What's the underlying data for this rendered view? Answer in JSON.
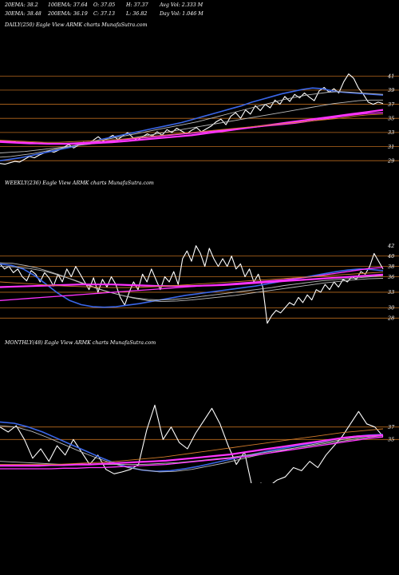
{
  "header": {
    "ema20": "20EMA: 38.2",
    "ema100": "100EMA: 37.64",
    "open": "O: 37.05",
    "high": "H: 37.37",
    "avg_vol": "Avg Vol: 2.333 M",
    "ema30": "30EMA: 38.48",
    "ema200": "200EMA: 36.19",
    "close": "C: 37.13",
    "low": "L: 36.82",
    "day_vol": "Day Vol: 1.046 M"
  },
  "colors": {
    "price": "#ffffff",
    "ema_blue": "#3a66e8",
    "ema_pink": "#ff33ff",
    "ema_gray": "#bbbbbb",
    "level_line": "#b86a1e",
    "ema_orange": "#d07a2a"
  },
  "chart_data": [
    {
      "type": "line",
      "title": "DAILY(250) Eagle View ARMK charts MunafaSutra.com",
      "ylim": [
        28,
        42.5
      ],
      "yticks": [
        "41",
        "39",
        "37",
        "35",
        "33",
        "31",
        "29"
      ],
      "levels": [
        41,
        39,
        37,
        35,
        33,
        31,
        29
      ],
      "grid": false,
      "series": [
        {
          "role": "price",
          "values": [
            28.6,
            28.5,
            28.7,
            28.9,
            28.8,
            29.2,
            29.6,
            29.4,
            29.8,
            30.1,
            30.4,
            30.2,
            30.5,
            30.9,
            31.3,
            30.8,
            31.2,
            31.6,
            31.4,
            31.9,
            32.4,
            31.8,
            32.2,
            32.6,
            32.0,
            32.5,
            33.0,
            32.3,
            31.9,
            32.4,
            32.8,
            32.5,
            33.1,
            32.6,
            33.4,
            33.0,
            33.6,
            33.2,
            32.8,
            33.3,
            33.7,
            33.1,
            33.5,
            33.9,
            34.5,
            34.9,
            34.1,
            35.3,
            35.8,
            35.0,
            36.2,
            35.6,
            36.8,
            36.1,
            37.0,
            36.5,
            37.6,
            37.0,
            38.1,
            37.4,
            38.4,
            37.9,
            38.6,
            38.0,
            37.5,
            38.9,
            39.4,
            38.7,
            39.2,
            38.6,
            40.2,
            41.3,
            40.7,
            39.3,
            38.4,
            37.3,
            37.0,
            37.3,
            37.1
          ]
        },
        {
          "role": "ema",
          "values": [
            29.0,
            29.2,
            29.4,
            29.7,
            30.0,
            30.3,
            30.6,
            30.9,
            31.3,
            31.6,
            32.0,
            32.3,
            32.6,
            32.9,
            33.2,
            33.5,
            33.8,
            34.1,
            34.4,
            34.8,
            35.2,
            35.6,
            36.0,
            36.4,
            36.8,
            37.3,
            37.7,
            38.1,
            38.5,
            38.8,
            39.1,
            39.3,
            39.2,
            38.9,
            38.7,
            38.6,
            38.5,
            38.4,
            38.3
          ]
        },
        {
          "role": "ema",
          "values": [
            29.5,
            29.6,
            29.8,
            30.0,
            30.3,
            30.6,
            30.9,
            31.2,
            31.5,
            31.8,
            32.1,
            32.4,
            32.7,
            33.0,
            33.3,
            33.6,
            33.9,
            34.2,
            34.5,
            34.9,
            35.3,
            35.7,
            36.1,
            36.5,
            36.9,
            37.3,
            37.7,
            38.0,
            38.3,
            38.5,
            38.7,
            38.8,
            38.7,
            38.6,
            38.5,
            38.4
          ]
        },
        {
          "role": "ema",
          "values": [
            30.1,
            30.2,
            30.3,
            30.5,
            30.7,
            30.9,
            31.1,
            31.3,
            31.5,
            31.7,
            32.0,
            32.3,
            32.6,
            32.9,
            33.2,
            33.5,
            33.8,
            34.1,
            34.4,
            34.7,
            35.0,
            35.3,
            35.6,
            35.9,
            36.2,
            36.5,
            36.8,
            37.1,
            37.3,
            37.5,
            37.6,
            37.6
          ]
        },
        {
          "role": "ema",
          "values": [
            31.8,
            31.6,
            31.5,
            31.4,
            31.4,
            31.4,
            31.5,
            31.6,
            31.8,
            32.0,
            32.2,
            32.4,
            32.6,
            32.9,
            33.2,
            33.5,
            33.8,
            34.1,
            34.4,
            34.7,
            35.0,
            35.3,
            35.6,
            35.9,
            36.2
          ]
        },
        {
          "role": "ema",
          "values": [
            31.6,
            31.5,
            31.4,
            31.4,
            31.4,
            31.5,
            31.6,
            31.7,
            31.9,
            32.1,
            32.3,
            32.5,
            32.7,
            32.9,
            33.1,
            33.3,
            33.5,
            33.7,
            33.9,
            34.1,
            34.3,
            34.6,
            34.9,
            35.2,
            35.5,
            35.7,
            35.8
          ]
        },
        {
          "role": "ema",
          "values": [
            31.9,
            31.8,
            31.7,
            31.6,
            31.6,
            31.7,
            31.8,
            31.9,
            32.0,
            32.2,
            32.4,
            32.6,
            32.8,
            33.0,
            33.2,
            33.4,
            33.6,
            33.8,
            34.0,
            34.2,
            34.4,
            34.6,
            34.8,
            35.0,
            35.3,
            35.5,
            35.6
          ]
        }
      ]
    },
    {
      "type": "line",
      "title": "WEEKLY(236) Eagle View ARMK charts MunafaSutra.com",
      "ylim": [
        26.5,
        43.5
      ],
      "yticks": [
        "42",
        "40",
        "38",
        "36",
        "33",
        "30",
        "28"
      ],
      "levels": [
        40,
        38,
        36,
        33,
        30,
        28
      ],
      "grid": false,
      "series": [
        {
          "role": "price",
          "values": [
            38.5,
            37.5,
            38.0,
            36.8,
            37.5,
            36.0,
            35.2,
            37.2,
            36.5,
            35.0,
            36.8,
            35.8,
            34.2,
            36.5,
            35.0,
            37.5,
            36.0,
            38.0,
            36.5,
            35.0,
            33.5,
            35.8,
            33.0,
            35.5,
            34.0,
            36.0,
            34.5,
            32.0,
            30.5,
            33.0,
            35.0,
            33.5,
            36.5,
            35.0,
            37.5,
            35.5,
            33.5,
            36.0,
            35.0,
            37.0,
            34.5,
            39.5,
            41.0,
            39.0,
            42.0,
            40.5,
            38.0,
            41.5,
            39.5,
            38.0,
            39.5,
            38.0,
            40.0,
            37.5,
            38.5,
            36.0,
            37.5,
            35.0,
            36.5,
            34.0,
            27.0,
            28.5,
            29.5,
            29.0,
            30.0,
            31.0,
            30.5,
            32.0,
            31.0,
            32.5,
            31.5,
            33.5,
            33.0,
            34.5,
            33.5,
            35.0,
            34.0,
            35.5,
            35.0,
            36.0,
            35.5,
            37.0,
            36.5,
            38.0,
            40.5,
            39.0,
            37.5
          ]
        },
        {
          "role": "ema",
          "values": [
            38.5,
            38.2,
            37.5,
            36.2,
            34.5,
            32.8,
            31.4,
            30.6,
            30.2,
            30.1,
            30.2,
            30.5,
            30.8,
            31.2,
            31.6,
            32.0,
            32.4,
            32.7,
            33.0,
            33.3,
            33.6,
            33.9,
            34.2,
            34.6,
            35.0,
            35.4,
            35.8,
            36.2,
            36.6,
            37.0,
            37.3,
            37.5,
            37.4,
            37.2
          ]
        },
        {
          "role": "ema",
          "values": [
            38.7,
            38.6,
            38.2,
            37.7,
            37.0,
            36.2,
            35.3,
            34.4,
            33.6,
            32.9,
            32.3,
            31.9,
            31.6,
            31.5,
            31.6,
            31.8,
            32.1,
            32.4,
            32.7,
            33.0,
            33.3,
            33.6,
            33.9,
            34.3,
            34.6,
            34.9,
            35.2,
            35.4,
            35.6,
            35.8,
            36.0,
            36.2
          ]
        },
        {
          "role": "ema",
          "values": [
            38.0,
            37.9,
            37.6,
            37.1,
            36.3,
            35.4,
            34.4,
            33.4,
            32.6,
            31.9,
            31.4,
            31.2,
            31.3,
            31.5,
            31.8,
            32.1,
            32.4,
            32.8,
            33.2,
            33.6,
            34.0,
            34.4,
            34.8,
            35.1,
            35.4,
            35.6,
            35.7
          ]
        },
        {
          "role": "ema",
          "values": [
            34.0,
            34.1,
            34.2,
            34.3,
            34.4,
            34.5,
            34.5,
            34.5,
            34.4,
            34.3,
            34.2,
            34.2,
            34.2,
            34.3,
            34.4,
            34.6,
            34.8,
            35.0,
            35.2,
            35.4,
            35.6,
            35.8,
            36.0,
            36.2,
            36.4
          ]
        },
        {
          "role": "ema",
          "values": [
            31.4,
            31.6,
            31.8,
            32.0,
            32.2,
            32.4,
            32.6,
            32.8,
            33.0,
            33.2,
            33.4,
            33.6,
            33.8,
            34.0,
            34.2,
            34.4,
            34.6,
            34.8,
            35.0,
            35.2,
            35.4,
            35.7,
            36.0,
            36.4,
            36.8,
            37.2,
            37.6,
            37.8
          ]
        },
        {
          "role": "ema",
          "values": [
            35.0,
            34.8,
            34.6,
            34.4,
            34.2,
            34.1,
            34.0,
            33.9,
            33.9,
            34.0,
            34.1,
            34.3,
            34.5,
            34.7,
            34.9,
            35.1,
            35.3,
            35.5,
            35.7,
            35.9,
            36.1,
            36.3,
            36.5,
            36.7,
            36.9
          ]
        }
      ]
    },
    {
      "type": "line",
      "title": "MONTHLY(48) Eagle View ARMK charts MunafaSutra.com",
      "ylim": [
        28,
        44
      ],
      "yticks": [
        "37",
        "35"
      ],
      "levels": [
        37,
        35
      ],
      "grid": false,
      "series": [
        {
          "role": "price",
          "values": [
            37.0,
            36.2,
            37.2,
            35.0,
            32.0,
            33.5,
            31.5,
            34.0,
            32.5,
            35.0,
            33.0,
            31.0,
            32.5,
            30.2,
            29.5,
            29.8,
            30.2,
            31.0,
            36.5,
            40.5,
            35.0,
            37.0,
            34.5,
            33.5,
            36.0,
            38.0,
            40.0,
            37.5,
            34.0,
            31.0,
            33.0,
            27.0,
            28.0,
            27.5,
            28.5,
            29.0,
            30.5,
            30.0,
            31.5,
            30.5,
            32.5,
            34.0,
            35.5,
            37.5,
            39.5,
            37.5,
            37.0,
            35.5
          ]
        },
        {
          "role": "ema",
          "values": [
            37.8,
            37.6,
            37.0,
            36.2,
            35.2,
            34.2,
            33.2,
            32.2,
            31.3,
            30.6,
            30.1,
            29.9,
            30.0,
            30.3,
            30.7,
            31.2,
            31.7,
            32.2,
            32.7,
            33.2,
            33.6,
            34.0,
            34.4,
            34.8,
            35.2,
            35.5,
            35.7,
            35.8
          ]
        },
        {
          "role": "ema",
          "values": [
            37.2,
            37.0,
            36.3,
            35.3,
            34.2,
            33.1,
            32.1,
            31.2,
            30.5,
            30.1,
            29.8,
            29.9,
            30.2,
            30.7,
            31.2,
            31.8,
            32.4,
            32.9,
            33.4,
            33.9,
            34.4,
            34.8,
            35.2,
            35.5,
            35.6
          ]
        },
        {
          "role": "ema",
          "values": [
            31.5,
            31.4,
            31.3,
            31.2,
            31.1,
            31.0,
            31.0,
            31.0,
            31.0,
            31.0,
            31.0,
            31.0,
            31.1,
            31.2,
            31.3,
            31.5,
            31.7,
            31.9,
            32.1,
            32.4,
            32.7,
            33.0,
            33.3,
            33.6,
            33.9,
            34.2,
            34.5,
            34.8,
            35.1,
            35.4,
            35.6
          ]
        },
        {
          "role": "ema",
          "values": [
            30.8,
            30.8,
            30.8,
            30.8,
            30.9,
            30.9,
            31.0,
            31.0,
            31.1,
            31.2,
            31.3,
            31.4,
            31.5,
            31.6,
            31.8,
            32.0,
            32.2,
            32.4,
            32.6,
            32.9,
            33.2,
            33.5,
            33.8,
            34.1,
            34.4,
            34.7,
            35.0,
            35.3,
            35.5,
            35.6,
            35.7
          ]
        },
        {
          "role": "ema",
          "values": [
            30.3,
            30.3,
            30.3,
            30.3,
            30.3,
            30.4,
            30.4,
            30.5,
            30.5,
            30.6,
            30.7,
            30.8,
            30.9,
            31.0,
            31.2,
            31.4,
            31.6,
            31.8,
            32.0,
            32.2,
            32.5,
            32.8,
            33.1,
            33.4,
            33.7,
            34.0,
            34.3,
            34.6,
            34.9,
            35.2,
            35.4
          ]
        },
        {
          "role": "ema",
          "values": [
            31.0,
            31.0,
            31.0,
            31.0,
            31.0,
            31.1,
            31.2,
            31.3,
            31.4,
            31.6,
            31.8,
            32.0,
            32.2,
            32.5,
            32.8,
            33.1,
            33.4,
            33.7,
            34.0,
            34.3,
            34.6,
            34.9,
            35.2,
            35.5,
            35.8,
            36.1,
            36.3,
            36.5,
            36.7
          ]
        }
      ]
    }
  ]
}
